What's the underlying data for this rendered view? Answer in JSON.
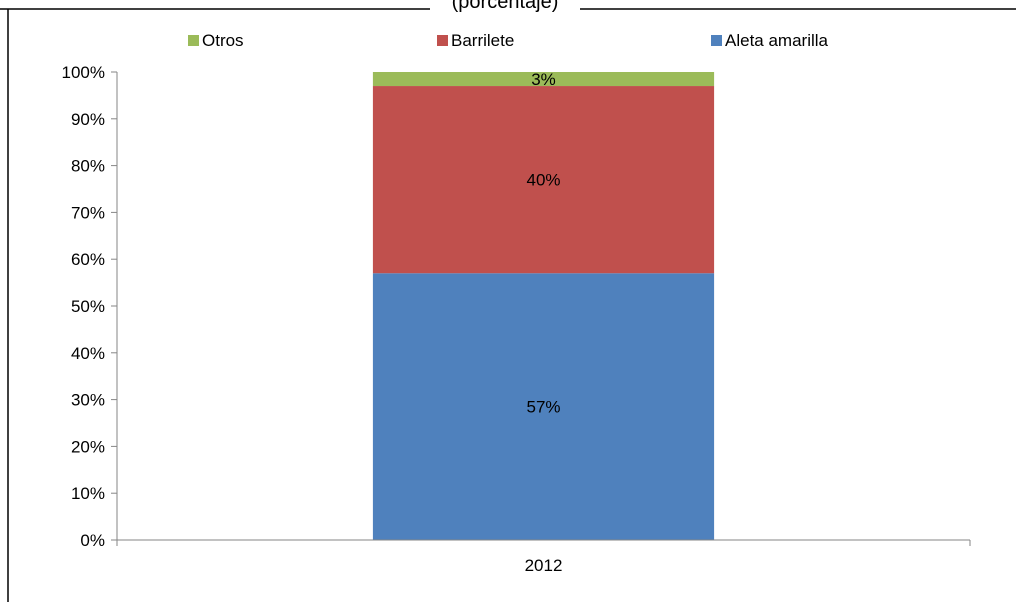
{
  "chart_data": {
    "type": "bar",
    "stacked": true,
    "percent": true,
    "title": "(porcentaje)",
    "categories": [
      "2012"
    ],
    "series": [
      {
        "name": "Aleta amarilla",
        "values": [
          57
        ],
        "color": "#4F81BD",
        "label": "57%"
      },
      {
        "name": "Barrilete",
        "values": [
          40
        ],
        "color": "#C0504D",
        "label": "40%"
      },
      {
        "name": "Otros",
        "values": [
          3
        ],
        "color": "#9BBB59",
        "label": "3%"
      }
    ],
    "legend_order": [
      "Otros",
      "Barrilete",
      "Aleta amarilla"
    ],
    "legend_position": "top",
    "ylim": [
      0,
      100
    ],
    "yticks": [
      "0%",
      "10%",
      "20%",
      "30%",
      "40%",
      "50%",
      "60%",
      "70%",
      "80%",
      "90%",
      "100%"
    ],
    "grid": false
  }
}
